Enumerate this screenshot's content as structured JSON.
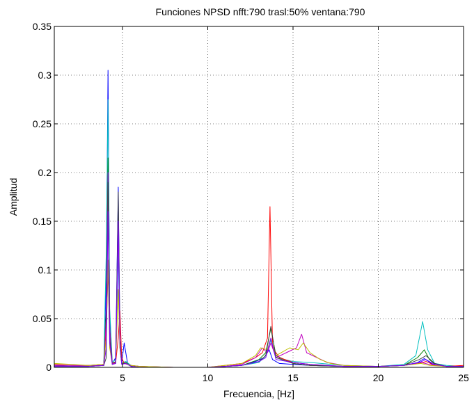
{
  "chart_data": {
    "type": "line",
    "title": "Funciones NPSD nfft:790 trasl:50% ventana:790",
    "xlabel": "Frecuencia, [Hz]",
    "ylabel": "Amplitud",
    "xlim": [
      1,
      25
    ],
    "ylim": [
      0,
      0.35
    ],
    "xticks": [
      5,
      10,
      15,
      20,
      25
    ],
    "xtick_labels": [
      "5",
      "10",
      "15",
      "20",
      "25"
    ],
    "yticks": [
      0,
      0.05,
      0.1,
      0.15,
      0.2,
      0.25,
      0.3,
      0.35
    ],
    "ytick_labels": [
      "0",
      "0.05",
      "0.1",
      "0.15",
      "0.2",
      "0.25",
      "0.3",
      "0.35"
    ],
    "grid": "dotted",
    "legend": "none",
    "series": [
      {
        "color": "#0000ff",
        "x": [
          1,
          2,
          3,
          3.9,
          4.05,
          4.15,
          4.25,
          4.4,
          4.6,
          4.75,
          4.85,
          4.95,
          5.1,
          5.3,
          5.5,
          6,
          8,
          10,
          11,
          12,
          12.8,
          13.3,
          13.6,
          13.8,
          14.2,
          15,
          16,
          18,
          20,
          21.5,
          22.3,
          22.7,
          23.2,
          24,
          25
        ],
        "y": [
          0.002,
          0.001,
          0.001,
          0.002,
          0.09,
          0.305,
          0.05,
          0.004,
          0.01,
          0.185,
          0.03,
          0.004,
          0.025,
          0.004,
          0.001,
          0,
          0,
          0,
          0.001,
          0.002,
          0.006,
          0.01,
          0.018,
          0.008,
          0.004,
          0.003,
          0.002,
          0.001,
          0.001,
          0.002,
          0.005,
          0.009,
          0.003,
          0.001,
          0.001
        ]
      },
      {
        "color": "#00bfbf",
        "x": [
          1,
          2,
          3,
          3.9,
          4.05,
          4.15,
          4.25,
          4.4,
          4.6,
          4.75,
          4.85,
          4.95,
          5.2,
          5.5,
          6,
          8,
          10,
          11,
          12,
          13,
          13.4,
          13.7,
          14,
          15,
          16,
          18,
          20,
          21.5,
          22.2,
          22.6,
          22.9,
          23.3,
          24,
          25
        ],
        "y": [
          0.002,
          0.002,
          0.002,
          0.003,
          0.12,
          0.275,
          0.06,
          0.005,
          0.008,
          0.12,
          0.02,
          0.005,
          0.006,
          0.002,
          0.001,
          0,
          0,
          0.001,
          0.002,
          0.005,
          0.012,
          0.028,
          0.01,
          0.006,
          0.005,
          0.002,
          0.001,
          0.003,
          0.012,
          0.047,
          0.018,
          0.004,
          0.002,
          0.001
        ]
      },
      {
        "color": "#008000",
        "x": [
          1,
          2,
          3,
          3.9,
          4.05,
          4.15,
          4.25,
          4.4,
          4.6,
          4.75,
          4.85,
          4.95,
          5.2,
          5.5,
          6,
          8,
          10,
          11,
          12,
          13,
          13.4,
          13.7,
          14,
          15,
          16,
          18,
          20,
          21.5,
          22.3,
          22.7,
          23,
          23.4,
          24,
          25
        ],
        "y": [
          0.001,
          0.001,
          0.001,
          0.002,
          0.06,
          0.215,
          0.04,
          0.004,
          0.006,
          0.16,
          0.02,
          0.004,
          0.005,
          0.001,
          0,
          0,
          0,
          0.001,
          0.002,
          0.008,
          0.015,
          0.04,
          0.012,
          0.004,
          0.002,
          0.001,
          0.001,
          0.002,
          0.01,
          0.018,
          0.008,
          0.002,
          0.001,
          0.001
        ]
      },
      {
        "color": "#ff0000",
        "x": [
          1,
          2,
          3,
          3.9,
          4.05,
          4.15,
          4.25,
          4.4,
          4.6,
          4.75,
          4.85,
          4.95,
          5.1,
          5.5,
          6,
          8,
          10,
          11,
          12,
          12.8,
          13.2,
          13.5,
          13.65,
          13.8,
          14.2,
          15,
          16,
          18,
          20,
          21.5,
          22.4,
          22.8,
          23.3,
          24,
          25
        ],
        "y": [
          0.003,
          0.002,
          0.002,
          0.003,
          0.04,
          0.1,
          0.03,
          0.004,
          0.005,
          0.03,
          0.058,
          0.01,
          0.004,
          0.002,
          0.001,
          0,
          0,
          0.002,
          0.004,
          0.01,
          0.015,
          0.03,
          0.165,
          0.02,
          0.01,
          0.005,
          0.003,
          0.001,
          0.001,
          0.002,
          0.004,
          0.006,
          0.002,
          0.001,
          0.002
        ]
      },
      {
        "color": "#bf00bf",
        "x": [
          1,
          2,
          3,
          3.9,
          4.05,
          4.15,
          4.25,
          4.4,
          4.6,
          4.75,
          4.85,
          4.95,
          5.2,
          5.5,
          6,
          8,
          10,
          11,
          12,
          12.8,
          13.2,
          13.5,
          13.7,
          14,
          14.6,
          15.2,
          15.5,
          15.8,
          16.4,
          17,
          18,
          20,
          21.5,
          22.5,
          23,
          24,
          25
        ],
        "y": [
          0.002,
          0.002,
          0.002,
          0.002,
          0.05,
          0.2,
          0.04,
          0.003,
          0.005,
          0.14,
          0.03,
          0.004,
          0.004,
          0.002,
          0.001,
          0,
          0,
          0.001,
          0.003,
          0.01,
          0.02,
          0.015,
          0.025,
          0.01,
          0.015,
          0.02,
          0.034,
          0.015,
          0.01,
          0.005,
          0.002,
          0.001,
          0.002,
          0.005,
          0.003,
          0.001,
          0.001
        ]
      },
      {
        "color": "#bfbf00",
        "x": [
          1,
          2,
          3,
          3.9,
          4.05,
          4.15,
          4.25,
          4.4,
          4.6,
          4.75,
          4.85,
          4.95,
          5.2,
          5.5,
          6,
          8,
          10,
          11,
          12,
          12.8,
          13.1,
          13.5,
          13.7,
          14,
          14.8,
          15.3,
          15.6,
          16,
          16.6,
          17.2,
          18,
          20,
          21.5,
          22.5,
          23,
          24,
          25
        ],
        "y": [
          0.004,
          0.003,
          0.002,
          0.003,
          0.03,
          0.11,
          0.02,
          0.003,
          0.004,
          0.08,
          0.02,
          0.004,
          0.004,
          0.002,
          0.001,
          0,
          0,
          0.002,
          0.004,
          0.012,
          0.02,
          0.018,
          0.03,
          0.012,
          0.02,
          0.018,
          0.025,
          0.015,
          0.008,
          0.004,
          0.002,
          0.001,
          0.002,
          0.004,
          0.002,
          0.001,
          0.001
        ]
      },
      {
        "color": "#404040",
        "x": [
          1,
          2,
          3,
          3.9,
          4.05,
          4.15,
          4.25,
          4.4,
          4.6,
          4.75,
          4.85,
          4.95,
          5.2,
          5.5,
          6,
          8,
          10,
          11,
          12,
          13,
          13.4,
          13.7,
          14,
          15,
          16,
          18,
          20,
          21.5,
          22.4,
          22.8,
          23.3,
          24,
          25
        ],
        "y": [
          0.001,
          0.001,
          0.001,
          0.002,
          0.01,
          0.19,
          0.03,
          0.003,
          0.004,
          0.18,
          0.03,
          0.004,
          0.004,
          0.001,
          0,
          0,
          0,
          0.001,
          0.002,
          0.006,
          0.012,
          0.042,
          0.01,
          0.004,
          0.002,
          0.001,
          0.001,
          0.002,
          0.008,
          0.012,
          0.004,
          0.001,
          0.001
        ]
      },
      {
        "color": "#7f00ff",
        "x": [
          1,
          2,
          3,
          3.9,
          4.05,
          4.15,
          4.25,
          4.4,
          4.6,
          4.75,
          4.85,
          4.95,
          5.2,
          5.5,
          6,
          8,
          10,
          11,
          12,
          13,
          13.4,
          13.7,
          14,
          15,
          16,
          18,
          20,
          21.5,
          22.4,
          22.8,
          23.3,
          24,
          25
        ],
        "y": [
          0.001,
          0.001,
          0.001,
          0.002,
          0.02,
          0.16,
          0.025,
          0.003,
          0.004,
          0.15,
          0.025,
          0.003,
          0.004,
          0.001,
          0,
          0,
          0,
          0.001,
          0.002,
          0.006,
          0.01,
          0.03,
          0.008,
          0.005,
          0.003,
          0.001,
          0.001,
          0.002,
          0.005,
          0.008,
          0.003,
          0.001,
          0.001
        ]
      }
    ]
  }
}
